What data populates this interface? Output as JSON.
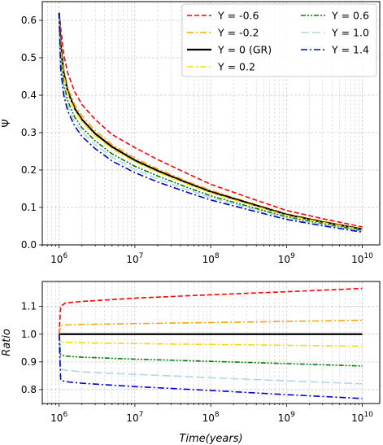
{
  "chart_data": [
    {
      "type": "line",
      "xscale": "log",
      "xlim": [
        600000,
        17000000000
      ],
      "ylim": [
        0,
        0.65
      ],
      "ylabel": "Ψ",
      "xlabel": "",
      "grid": true,
      "legend_position": "top-right",
      "legend_columns": 2,
      "x_ticks": [
        {
          "value": 1000000,
          "base": "10",
          "exp": "6"
        },
        {
          "value": 10000000,
          "base": "10",
          "exp": "7"
        },
        {
          "value": 100000000,
          "base": "10",
          "exp": "8"
        },
        {
          "value": 1000000000,
          "base": "10",
          "exp": "9"
        },
        {
          "value": 10000000000,
          "base": "10",
          "exp": "10"
        }
      ],
      "y_ticks": [
        {
          "value": 0.0,
          "label": "0.0"
        },
        {
          "value": 0.1,
          "label": "0.1"
        },
        {
          "value": 0.2,
          "label": "0.2"
        },
        {
          "value": 0.3,
          "label": "0.3"
        },
        {
          "value": 0.4,
          "label": "0.4"
        },
        {
          "value": 0.5,
          "label": "0.5"
        },
        {
          "value": 0.6,
          "label": "0.6"
        }
      ],
      "x": [
        1000000,
        1050000,
        1150000,
        1300000,
        1600000,
        2000000,
        3000000,
        5000000,
        10000000,
        20000000,
        50000000,
        100000000,
        300000000,
        1000000000,
        3000000000,
        10000000000
      ],
      "series": [
        {
          "name": "Y = -0.6",
          "color": "#ff0000",
          "dash": "dashed",
          "values": [
            0.62,
            0.58,
            0.51,
            0.46,
            0.41,
            0.375,
            0.335,
            0.295,
            0.26,
            0.228,
            0.19,
            0.162,
            0.128,
            0.092,
            0.07,
            0.048
          ]
        },
        {
          "name": "Y = -0.2",
          "color": "#ffa500",
          "dash": "dashdot",
          "values": [
            0.62,
            0.54,
            0.47,
            0.42,
            0.375,
            0.345,
            0.305,
            0.268,
            0.232,
            0.203,
            0.169,
            0.146,
            0.115,
            0.083,
            0.063,
            0.043
          ]
        },
        {
          "name": "Y = 0 (GR)",
          "color": "#000000",
          "dash": "solid",
          "values": [
            0.62,
            0.535,
            0.46,
            0.41,
            0.365,
            0.335,
            0.297,
            0.262,
            0.226,
            0.198,
            0.165,
            0.142,
            0.113,
            0.081,
            0.061,
            0.042
          ]
        },
        {
          "name": "Y = 0.2",
          "color": "#ffd700",
          "dash": "dashdot",
          "values": [
            0.62,
            0.528,
            0.455,
            0.405,
            0.36,
            0.33,
            0.292,
            0.257,
            0.222,
            0.194,
            0.162,
            0.139,
            0.11,
            0.079,
            0.06,
            0.041
          ]
        },
        {
          "name": "Y = 0.6",
          "color": "#008000",
          "dash": "dashdotdot",
          "values": [
            0.62,
            0.5,
            0.43,
            0.385,
            0.342,
            0.313,
            0.278,
            0.243,
            0.21,
            0.184,
            0.153,
            0.131,
            0.104,
            0.075,
            0.056,
            0.038
          ]
        },
        {
          "name": "Y = 1.0",
          "color": "#add8e6",
          "dash": "longdash",
          "values": [
            0.62,
            0.485,
            0.415,
            0.372,
            0.33,
            0.302,
            0.268,
            0.234,
            0.202,
            0.176,
            0.147,
            0.126,
            0.1,
            0.072,
            0.054,
            0.036
          ]
        },
        {
          "name": "Y = 1.4",
          "color": "#0000cd",
          "dash": "dashdot",
          "values": [
            0.62,
            0.47,
            0.4,
            0.358,
            0.318,
            0.29,
            0.257,
            0.224,
            0.193,
            0.168,
            0.14,
            0.12,
            0.095,
            0.068,
            0.051,
            0.034
          ]
        }
      ]
    },
    {
      "type": "line",
      "xscale": "log",
      "xlim": [
        600000,
        17000000000
      ],
      "ylim": [
        0.75,
        1.19
      ],
      "ylabel": "Ratio",
      "xlabel": "Time(years)",
      "grid": true,
      "x_ticks": [
        {
          "value": 1000000,
          "base": "10",
          "exp": "6"
        },
        {
          "value": 10000000,
          "base": "10",
          "exp": "7"
        },
        {
          "value": 100000000,
          "base": "10",
          "exp": "8"
        },
        {
          "value": 1000000000,
          "base": "10",
          "exp": "9"
        },
        {
          "value": 10000000000,
          "base": "10",
          "exp": "10"
        }
      ],
      "y_ticks": [
        {
          "value": 0.8,
          "label": "0.8"
        },
        {
          "value": 0.9,
          "label": "0.9"
        },
        {
          "value": 1.0,
          "label": "1.0"
        },
        {
          "value": 1.1,
          "label": "1.1"
        }
      ],
      "x": [
        1000000,
        1050000,
        1200000,
        2000000,
        10000000,
        100000000,
        1000000000,
        10000000000
      ],
      "series": [
        {
          "name": "Y = -0.6",
          "color": "#ff0000",
          "dash": "dashed",
          "values": [
            1.0,
            1.1,
            1.112,
            1.118,
            1.13,
            1.142,
            1.153,
            1.165
          ]
        },
        {
          "name": "Y = -0.2",
          "color": "#ffa500",
          "dash": "dashdot",
          "values": [
            1.0,
            1.03,
            1.033,
            1.035,
            1.038,
            1.042,
            1.046,
            1.05
          ]
        },
        {
          "name": "Y = 0 (GR)",
          "color": "#000000",
          "dash": "solid",
          "values": [
            1.0,
            1.0,
            1.0,
            1.0,
            1.0,
            1.0,
            1.0,
            1.0
          ]
        },
        {
          "name": "Y = 0.2",
          "color": "#ffd700",
          "dash": "dashdot",
          "values": [
            1.0,
            0.972,
            0.971,
            0.969,
            0.966,
            0.963,
            0.96,
            0.957
          ]
        },
        {
          "name": "Y = 0.6",
          "color": "#008000",
          "dash": "dashdotdot",
          "values": [
            1.0,
            0.925,
            0.921,
            0.917,
            0.91,
            0.902,
            0.894,
            0.885
          ]
        },
        {
          "name": "Y = 1.0",
          "color": "#add8e6",
          "dash": "longdash",
          "values": [
            1.0,
            0.875,
            0.87,
            0.864,
            0.855,
            0.843,
            0.832,
            0.821
          ]
        },
        {
          "name": "Y = 1.4",
          "color": "#0000cd",
          "dash": "dashdot",
          "values": [
            1.0,
            0.835,
            0.829,
            0.823,
            0.811,
            0.797,
            0.782,
            0.768
          ]
        }
      ]
    }
  ]
}
